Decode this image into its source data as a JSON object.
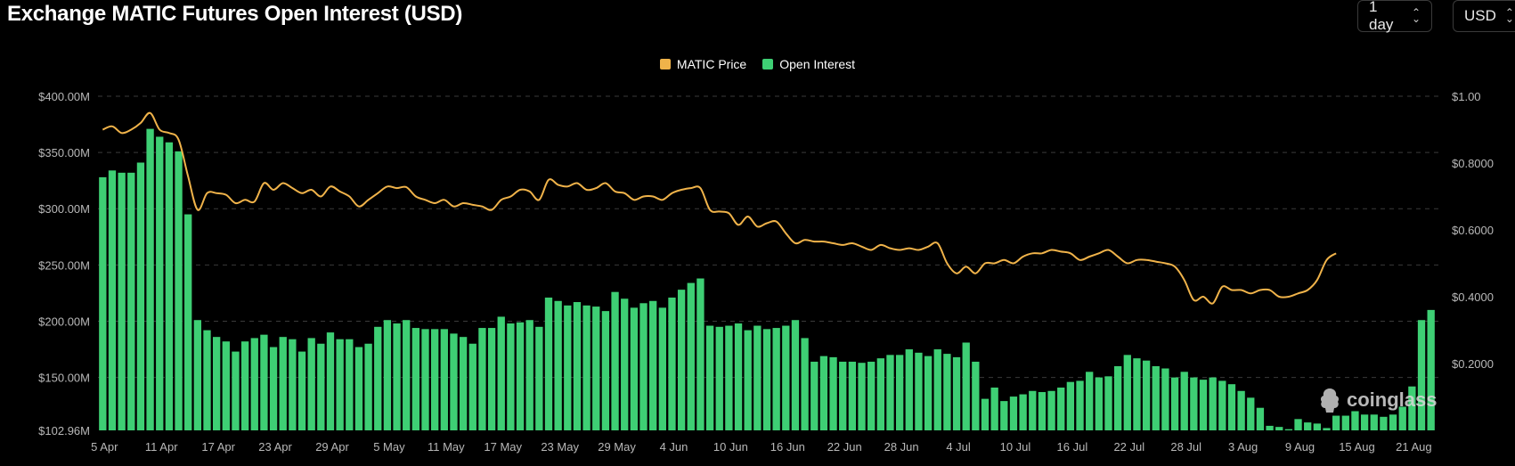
{
  "header": {
    "title": "Exchange MATIC Futures Open Interest (USD)",
    "interval": {
      "value": "1 day",
      "options": [
        "1 day"
      ]
    },
    "currency": {
      "value": "USD",
      "options": [
        "USD"
      ]
    }
  },
  "watermark": {
    "text": "coinglass",
    "icon": "coinglass-logo-icon"
  },
  "chart_data": {
    "type": "bar",
    "title": "Exchange MATIC Futures Open Interest (USD)",
    "legend_position": "top-center",
    "grid": true,
    "x_tick_labels": [
      "5 Apr",
      "11 Apr",
      "17 Apr",
      "23 Apr",
      "29 Apr",
      "5 May",
      "11 May",
      "17 May",
      "23 May",
      "29 May",
      "4 Jun",
      "10 Jun",
      "16 Jun",
      "22 Jun",
      "28 Jun",
      "4 Jul",
      "10 Jul",
      "16 Jul",
      "22 Jul",
      "28 Jul",
      "3 Aug",
      "9 Aug",
      "15 Aug",
      "21 Aug"
    ],
    "left_axis": {
      "tick_labels": [
        "$400.00M",
        "$350.00M",
        "$300.00M",
        "$250.00M",
        "$200.00M",
        "$150.00M",
        "$102.96M"
      ],
      "tick_values": [
        400,
        350,
        300,
        250,
        200,
        150,
        102.96
      ],
      "range": [
        102.96,
        400
      ],
      "unit": "M USD"
    },
    "right_axis": {
      "tick_labels": [
        "$1.00",
        "$0.8000",
        "$0.6000",
        "$0.4000",
        "$0.2000"
      ],
      "tick_values": [
        1.0,
        0.8,
        0.6,
        0.4,
        0.2
      ],
      "range": [
        0,
        1.0
      ]
    },
    "series": [
      {
        "name": "Open Interest",
        "kind": "bar",
        "axis": "left",
        "color": "#3ecf74",
        "values": [
          328,
          334,
          332,
          332,
          341,
          371,
          364,
          359,
          351,
          295,
          201,
          192,
          186,
          182,
          173,
          182,
          185,
          188,
          177,
          186,
          184,
          173,
          185,
          180,
          190,
          184,
          184,
          177,
          180,
          195,
          201,
          198,
          201,
          194,
          193,
          193,
          193,
          189,
          186,
          180,
          194,
          194,
          204,
          198,
          199,
          201,
          195,
          221,
          218,
          214,
          217,
          214,
          213,
          209,
          226,
          220,
          212,
          216,
          218,
          212,
          221,
          228,
          234,
          238,
          196,
          195,
          196,
          198,
          192,
          196,
          193,
          194,
          196,
          201,
          185,
          164,
          169,
          168,
          164,
          164,
          163,
          164,
          167,
          170,
          170,
          175,
          172,
          169,
          175,
          171,
          168,
          181,
          164,
          131,
          141,
          129,
          133,
          135,
          138,
          137,
          138,
          141,
          146,
          147,
          155,
          150,
          151,
          160,
          170,
          167,
          165,
          160,
          158,
          150,
          155,
          150,
          148,
          150,
          147,
          144,
          138,
          132,
          123,
          107,
          106,
          104,
          113,
          110,
          109,
          105,
          116,
          116,
          120,
          117,
          117,
          115,
          117,
          124,
          142,
          201,
          210
        ]
      },
      {
        "name": "MATIC Price",
        "kind": "line",
        "axis": "right",
        "color": "#f0b34a",
        "values": [
          0.9,
          0.91,
          0.89,
          0.9,
          0.92,
          0.95,
          0.9,
          0.89,
          0.87,
          0.76,
          0.66,
          0.71,
          0.71,
          0.705,
          0.68,
          0.69,
          0.685,
          0.74,
          0.72,
          0.74,
          0.725,
          0.71,
          0.72,
          0.7,
          0.73,
          0.715,
          0.7,
          0.67,
          0.69,
          0.71,
          0.73,
          0.725,
          0.728,
          0.7,
          0.69,
          0.68,
          0.69,
          0.67,
          0.68,
          0.675,
          0.67,
          0.66,
          0.69,
          0.7,
          0.72,
          0.715,
          0.69,
          0.75,
          0.735,
          0.73,
          0.74,
          0.72,
          0.725,
          0.74,
          0.715,
          0.71,
          0.69,
          0.7,
          0.7,
          0.69,
          0.71,
          0.72,
          0.725,
          0.725,
          0.66,
          0.655,
          0.65,
          0.615,
          0.64,
          0.61,
          0.62,
          0.625,
          0.59,
          0.56,
          0.57,
          0.565,
          0.565,
          0.56,
          0.555,
          0.56,
          0.55,
          0.54,
          0.555,
          0.545,
          0.54,
          0.545,
          0.54,
          0.55,
          0.56,
          0.5,
          0.47,
          0.49,
          0.47,
          0.5,
          0.5,
          0.51,
          0.5,
          0.52,
          0.53,
          0.53,
          0.54,
          0.535,
          0.53,
          0.51,
          0.52,
          0.53,
          0.54,
          0.52,
          0.5,
          0.51,
          0.51,
          0.505,
          0.5,
          0.49,
          0.45,
          0.39,
          0.4,
          0.38,
          0.43,
          0.42,
          0.42,
          0.41,
          0.42,
          0.42,
          0.4,
          0.4,
          0.41,
          0.42,
          0.45,
          0.51,
          0.53
        ]
      }
    ]
  }
}
